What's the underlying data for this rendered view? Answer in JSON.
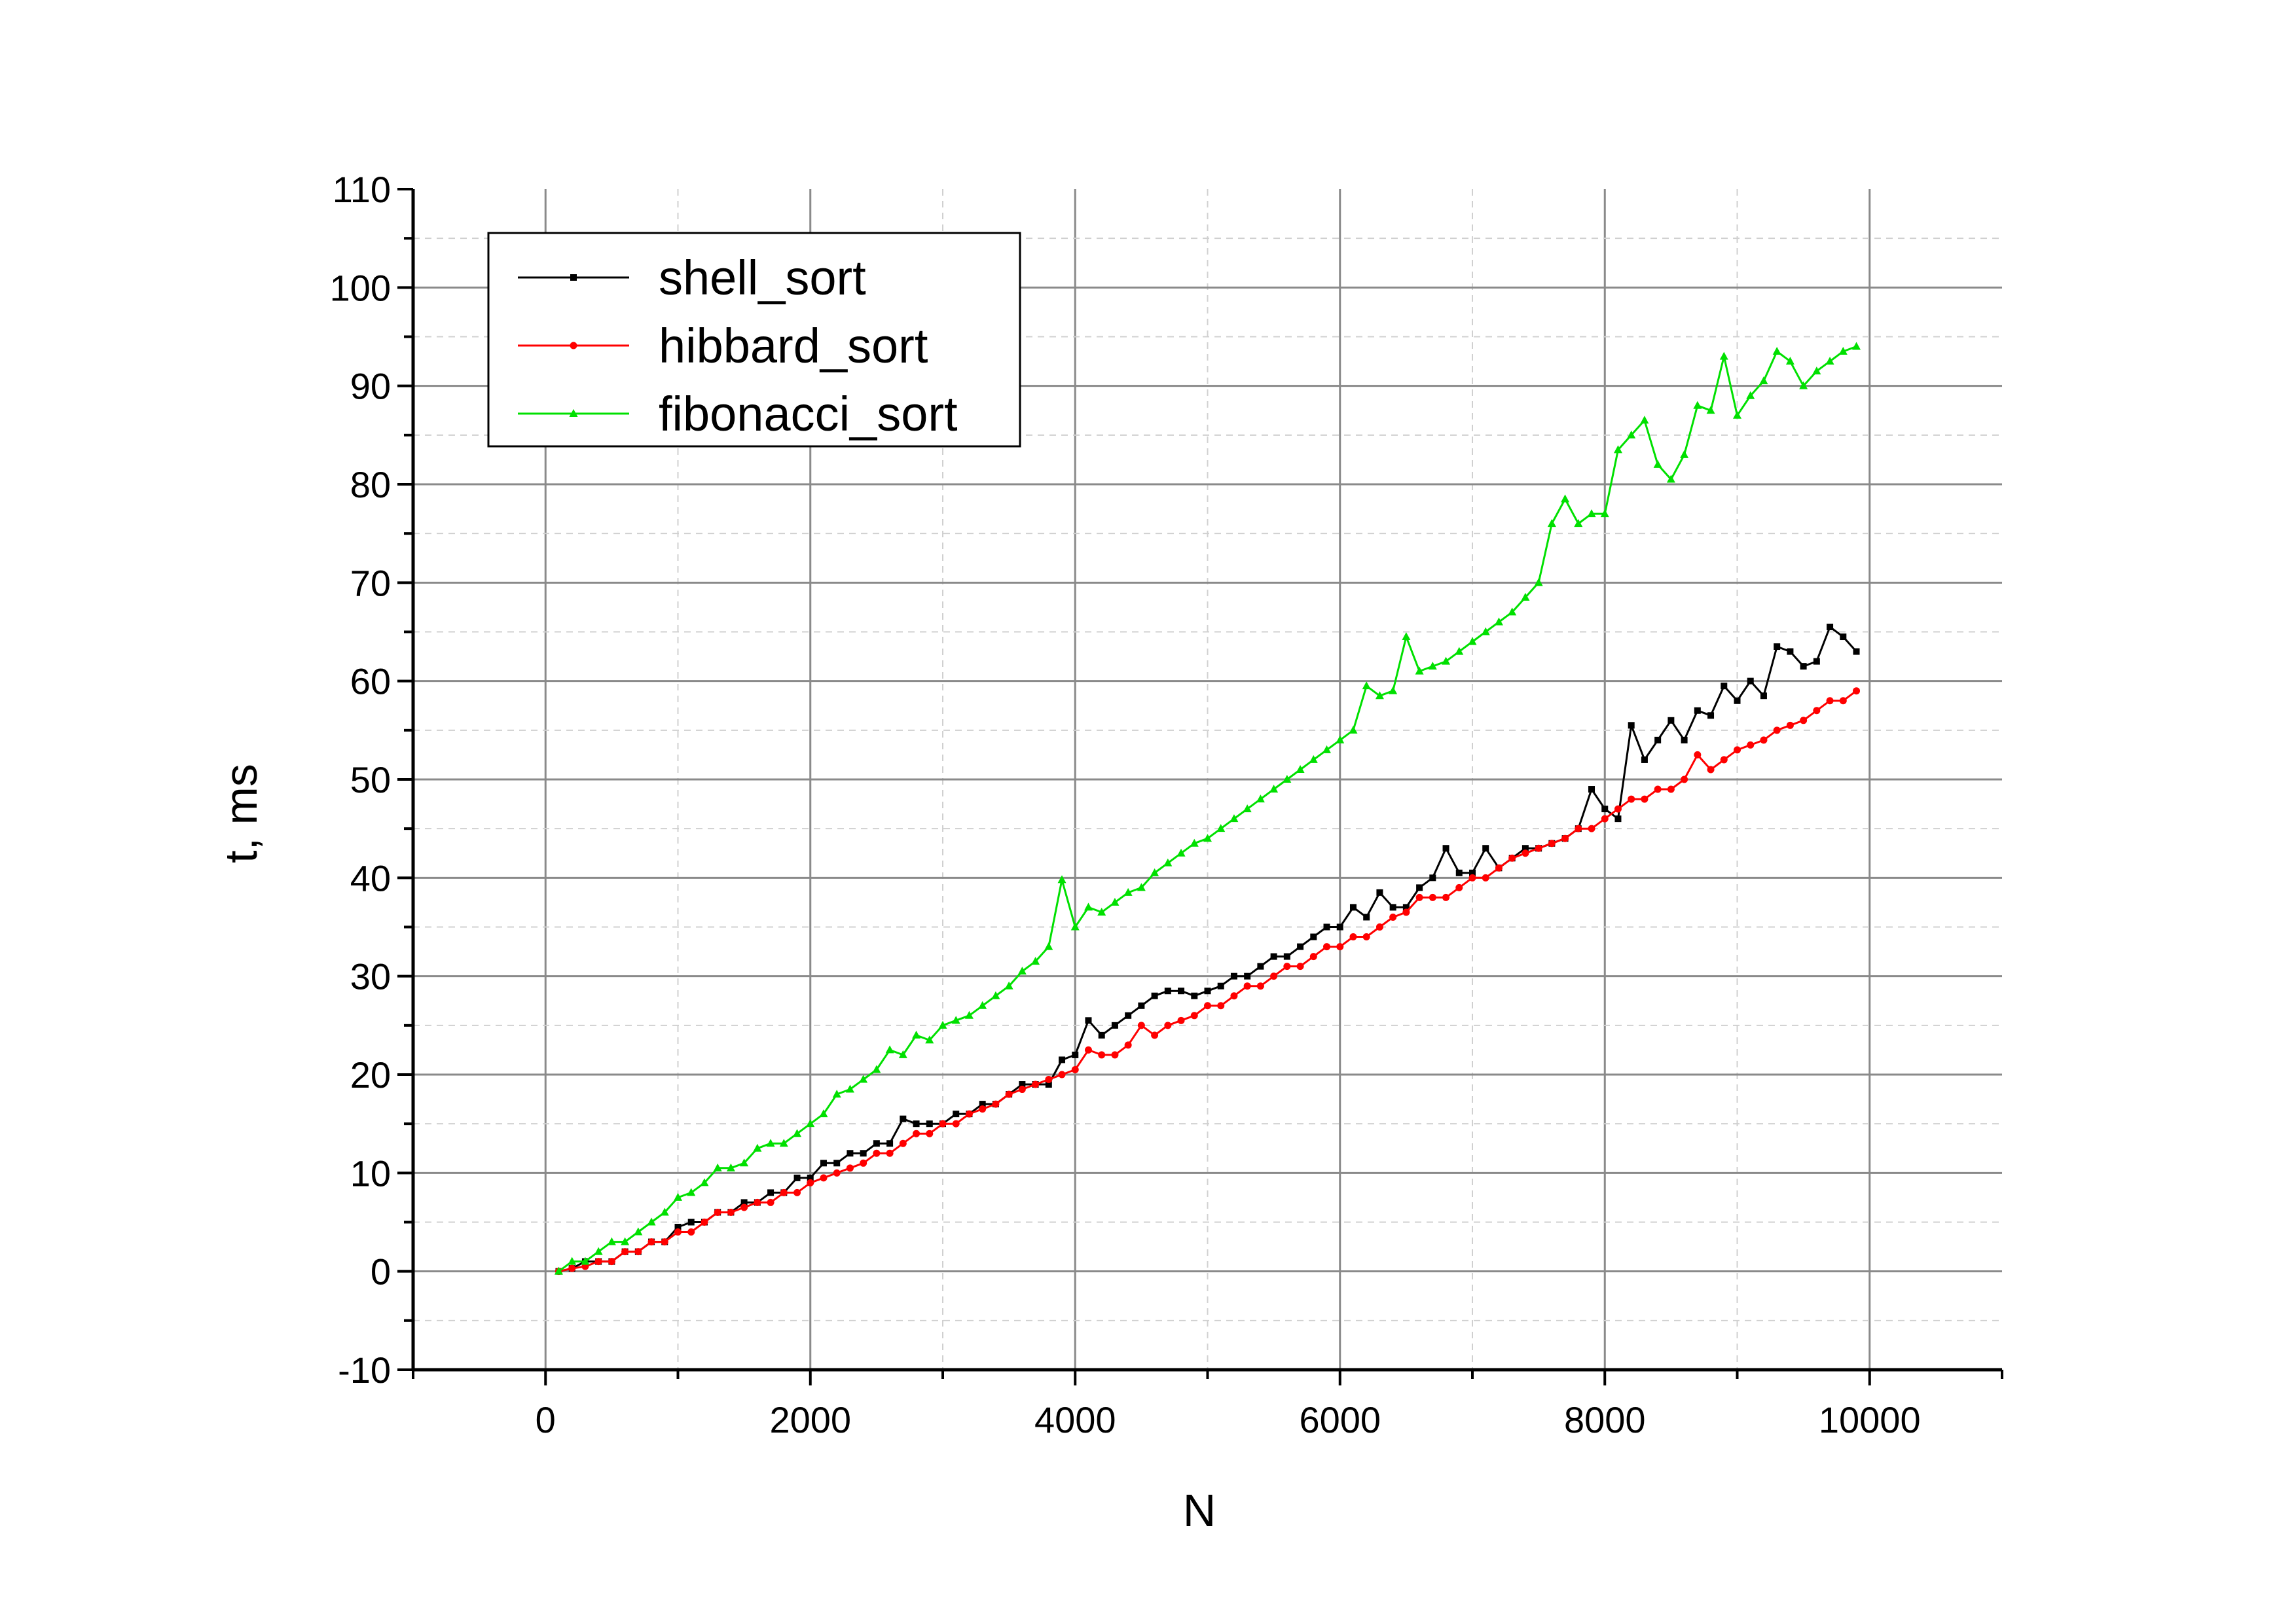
{
  "chart_data": {
    "type": "line",
    "xlabel": "N",
    "ylabel": "t, ms",
    "xlim": [
      -1000,
      11000
    ],
    "ylim": [
      -10,
      110
    ],
    "xticks": [
      0,
      2000,
      4000,
      6000,
      8000,
      10000
    ],
    "yticks": [
      -10,
      0,
      10,
      20,
      30,
      40,
      50,
      60,
      70,
      80,
      90,
      100,
      110
    ],
    "grid": true,
    "legend_position": "top-left",
    "x": [
      100,
      200,
      300,
      400,
      500,
      600,
      700,
      800,
      900,
      1000,
      1100,
      1200,
      1300,
      1400,
      1500,
      1600,
      1700,
      1800,
      1900,
      2000,
      2100,
      2200,
      2300,
      2400,
      2500,
      2600,
      2700,
      2800,
      2900,
      3000,
      3100,
      3200,
      3300,
      3400,
      3500,
      3600,
      3700,
      3800,
      3900,
      4000,
      4100,
      4200,
      4300,
      4400,
      4500,
      4600,
      4700,
      4800,
      4900,
      5000,
      5100,
      5200,
      5300,
      5400,
      5500,
      5600,
      5700,
      5800,
      5900,
      6000,
      6100,
      6200,
      6300,
      6400,
      6500,
      6600,
      6700,
      6800,
      6900,
      7000,
      7100,
      7200,
      7300,
      7400,
      7500,
      7600,
      7700,
      7800,
      7900,
      8000,
      8100,
      8200,
      8300,
      8400,
      8500,
      8600,
      8700,
      8800,
      8900,
      9000,
      9100,
      9200,
      9300,
      9400,
      9500,
      9600,
      9700,
      9800,
      9900
    ],
    "series": [
      {
        "name": "shell_sort",
        "color": "#000000",
        "marker": "square",
        "values": [
          0,
          0.3,
          1,
          1,
          1,
          2,
          2,
          3,
          3,
          4.5,
          5,
          5,
          6,
          6,
          7,
          7,
          8,
          8,
          9.5,
          9.5,
          11,
          11,
          12,
          12,
          13,
          13,
          15.5,
          15,
          15,
          15,
          16,
          16,
          17,
          17,
          18,
          19,
          19,
          19,
          21.5,
          22,
          25.5,
          24,
          25,
          26,
          27,
          28,
          28.5,
          28.5,
          28,
          28.5,
          29,
          30,
          30,
          31,
          32,
          32,
          33,
          34,
          35,
          35,
          37,
          36,
          38.5,
          37,
          37,
          39,
          40,
          43,
          40.5,
          40.5,
          43,
          41,
          42,
          43,
          43,
          43.5,
          44,
          45,
          49,
          47,
          46,
          55.5,
          52,
          54,
          56,
          54,
          57,
          56.5,
          59.5,
          58,
          60,
          58.5,
          63.5,
          63,
          61.5,
          62,
          65.5,
          64.5,
          63
        ]
      },
      {
        "name": "hibbard_sort",
        "color": "#ff0000",
        "marker": "circle",
        "values": [
          0,
          0.3,
          0.5,
          1,
          1,
          2,
          2,
          3,
          3,
          4,
          4,
          5,
          6,
          6,
          6.5,
          7,
          7,
          8,
          8,
          9,
          9.5,
          10,
          10.5,
          11,
          12,
          12,
          13,
          14,
          14,
          15,
          15,
          16,
          16.5,
          17,
          18,
          18.5,
          19,
          19.5,
          20,
          20.5,
          22.5,
          22,
          22,
          23,
          25,
          24,
          25,
          25.5,
          26,
          27,
          27,
          28,
          29,
          29,
          30,
          31,
          31,
          32,
          33,
          33,
          34,
          34,
          35,
          36,
          36.5,
          38,
          38,
          38,
          39,
          40,
          40,
          41,
          42,
          42.5,
          43,
          43.5,
          44,
          45,
          45,
          46,
          47,
          48,
          48,
          49,
          49,
          50,
          52.5,
          51,
          52,
          53,
          53.5,
          54,
          55,
          55.5,
          56,
          57,
          58,
          58,
          59
        ]
      },
      {
        "name": "fibonacci_sort",
        "color": "#00e000",
        "marker": "triangle",
        "values": [
          0,
          1,
          1,
          2,
          3,
          3,
          4,
          5,
          6,
          7.5,
          8,
          9,
          10.5,
          10.5,
          11,
          12.5,
          13,
          13,
          14,
          15,
          16,
          18,
          18.5,
          19.5,
          20.5,
          22.5,
          22,
          24,
          23.5,
          25,
          25.5,
          26,
          27,
          28,
          29,
          30.5,
          31.5,
          33,
          39.8,
          35,
          37,
          36.5,
          37.5,
          38.5,
          39,
          40.5,
          41.5,
          42.5,
          43.5,
          44,
          45,
          46,
          47,
          48,
          49,
          50,
          51,
          52,
          53,
          54,
          55,
          59.5,
          58.5,
          59,
          64.5,
          61,
          61.5,
          62,
          63,
          64,
          65,
          66,
          67,
          68.5,
          70,
          76,
          78.5,
          76,
          77,
          77,
          83.5,
          85,
          86.5,
          82,
          80.5,
          83,
          88,
          87.5,
          93,
          87,
          89,
          90.5,
          93.5,
          92.5,
          90,
          91.5,
          92.5,
          93.5,
          94
        ]
      }
    ]
  }
}
